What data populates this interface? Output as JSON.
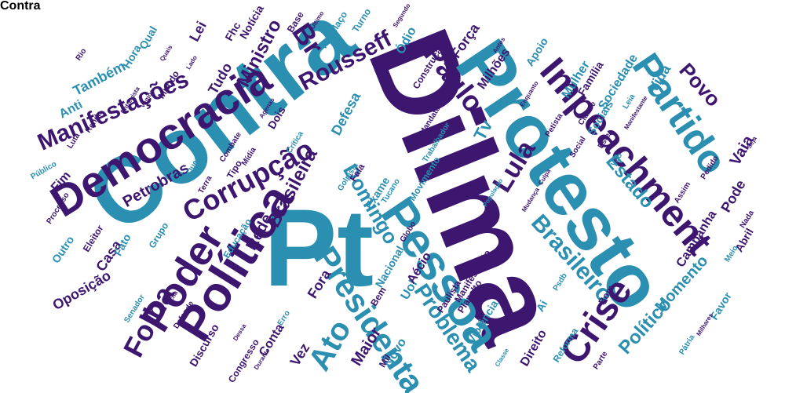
{
  "colors": {
    "purple": "#3d1670",
    "blue": "#2a8fb0",
    "background": "#ffffff"
  },
  "words": [
    {
      "text": "Dilma",
      "color": "purple"
    },
    {
      "text": "Pt",
      "color": "blue"
    },
    {
      "text": "Contra",
      "color": "blue"
    },
    {
      "text": "Protesto",
      "color": "blue"
    },
    {
      "text": "Política",
      "color": "purple"
    },
    {
      "text": "Pessoa",
      "color": "blue"
    },
    {
      "text": "Democracia",
      "color": "purple"
    },
    {
      "text": "Impeachment",
      "color": "purple"
    },
    {
      "text": "Partido",
      "color": "blue"
    },
    {
      "text": "Poder",
      "color": "purple"
    },
    {
      "text": "Crise",
      "color": "purple"
    },
    {
      "text": "Presidenta",
      "color": "blue"
    },
    {
      "text": "Corrupção",
      "color": "purple"
    },
    {
      "text": "Manifestações",
      "color": "purple"
    },
    {
      "text": "Folha",
      "color": "purple"
    },
    {
      "text": "Ato",
      "color": "blue"
    },
    {
      "text": "Rousseff",
      "color": "purple"
    },
    {
      "text": "Paulo",
      "color": "purple"
    },
    {
      "text": "Br",
      "color": "purple"
    },
    {
      "text": "Brasileiro",
      "color": "blue"
    },
    {
      "text": "Lula",
      "color": "purple"
    },
    {
      "text": "Problema",
      "color": "blue"
    },
    {
      "text": "Político",
      "color": "blue"
    },
    {
      "text": "Domingo",
      "color": "blue"
    },
    {
      "text": "Ministro",
      "color": "purple"
    },
    {
      "text": "Brasileira",
      "color": "purple"
    },
    {
      "text": "Estado",
      "color": "blue"
    },
    {
      "text": "Povo",
      "color": "purple"
    },
    {
      "text": "Petrobras",
      "color": "purple"
    },
    {
      "text": "Rede",
      "color": "purple"
    },
    {
      "text": "Tv",
      "color": "blue"
    },
    {
      "text": "Momento",
      "color": "blue"
    },
    {
      "text": "Maior",
      "color": "purple"
    },
    {
      "text": "Pode",
      "color": "purple"
    },
    {
      "text": "Vaia",
      "color": "purple"
    },
    {
      "text": "Vida",
      "color": "blue"
    },
    {
      "text": "Também",
      "color": "blue"
    },
    {
      "text": "Anti",
      "color": "blue"
    },
    {
      "text": "Tudo",
      "color": "purple"
    },
    {
      "text": "Lei",
      "color": "purple"
    },
    {
      "text": "Força",
      "color": "purple"
    },
    {
      "text": "Milhões",
      "color": "purple"
    },
    {
      "text": "Defesa",
      "color": "blue"
    },
    {
      "text": "Uol",
      "color": "blue"
    },
    {
      "text": "Direito",
      "color": "purple"
    },
    {
      "text": "Oposição",
      "color": "purple"
    },
    {
      "text": "Fora",
      "color": "purple"
    },
    {
      "text": "Vez",
      "color": "purple"
    },
    {
      "text": "Conta",
      "color": "purple"
    },
    {
      "text": "Novo",
      "color": "blue"
    },
    {
      "text": "Aécio",
      "color": "purple"
    },
    {
      "text": "Nacional",
      "color": "blue"
    },
    {
      "text": "Violência",
      "color": "blue"
    },
    {
      "text": "Mulher",
      "color": "blue"
    },
    {
      "text": "Sociais",
      "color": "blue"
    },
    {
      "text": "Ódio",
      "color": "blue"
    },
    {
      "text": "Apoio",
      "color": "blue"
    },
    {
      "text": "Exame",
      "color": "blue"
    },
    {
      "text": "Casa",
      "color": "purple"
    },
    {
      "text": "Fim",
      "color": "purple"
    },
    {
      "text": "Outro",
      "color": "blue"
    },
    {
      "text": "Favor",
      "color": "blue"
    },
    {
      "text": "Campanha",
      "color": "purple"
    },
    {
      "text": "Abril",
      "color": "purple"
    },
    {
      "text": "Sociedade",
      "color": "blue"
    },
    {
      "text": "Família",
      "color": "purple"
    },
    {
      "text": "Manifestação",
      "color": "purple"
    },
    {
      "text": "Fhc",
      "color": "purple"
    },
    {
      "text": "Hora",
      "color": "blue"
    },
    {
      "text": "Qual",
      "color": "blue"
    },
    {
      "text": "Mundo",
      "color": "purple"
    },
    {
      "text": "Notícia",
      "color": "purple"
    },
    {
      "text": "Base",
      "color": "purple"
    },
    {
      "text": "Turno",
      "color": "blue"
    },
    {
      "text": "Panelaço",
      "color": "blue"
    },
    {
      "text": "Dois",
      "color": "purple"
    },
    {
      "text": "Fala",
      "color": "purple"
    },
    {
      "text": "Bom",
      "color": "purple"
    },
    {
      "text": "Bem",
      "color": "purple"
    },
    {
      "text": "Mil",
      "color": "purple"
    },
    {
      "text": "Discurso",
      "color": "purple"
    },
    {
      "text": "Congresso",
      "color": "purple"
    },
    {
      "text": "Fato",
      "color": "blue"
    },
    {
      "text": "Grupo",
      "color": "blue"
    },
    {
      "text": "Eleitor",
      "color": "purple"
    },
    {
      "text": "Senador",
      "color": "blue"
    },
    {
      "text": "Movimento",
      "color": "blue"
    },
    {
      "text": "Trabalhador",
      "color": "blue"
    },
    {
      "text": "Mandato",
      "color": "purple"
    },
    {
      "text": "Paulista",
      "color": "purple"
    },
    {
      "text": "Planalto",
      "color": "purple"
    },
    {
      "text": "Globo",
      "color": "purple"
    },
    {
      "text": "Tucano",
      "color": "blue"
    },
    {
      "text": "Reforma",
      "color": "blue"
    },
    {
      "text": "Parte",
      "color": "purple"
    },
    {
      "text": "Ai",
      "color": "blue"
    },
    {
      "text": "Psdb",
      "color": "blue"
    },
    {
      "text": "Petista",
      "color": "purple"
    },
    {
      "text": "Social",
      "color": "purple"
    },
    {
      "text": "Vão",
      "color": "blue"
    },
    {
      "text": "Este",
      "color": "purple"
    },
    {
      "text": "Leia",
      "color": "blue"
    },
    {
      "text": "Manifestante",
      "color": "purple"
    },
    {
      "text": "Assim",
      "color": "purple"
    },
    {
      "text": "Pedido",
      "color": "purple"
    },
    {
      "text": "Nada",
      "color": "purple"
    },
    {
      "text": "Meio",
      "color": "blue"
    },
    {
      "text": "Quer",
      "color": "blue"
    },
    {
      "text": "Terra",
      "color": "purple"
    },
    {
      "text": "Combate",
      "color": "purple"
    },
    {
      "text": "Mídia",
      "color": "purple"
    },
    {
      "text": "Agenas",
      "color": "purple"
    },
    {
      "text": "Golpista",
      "color": "blue"
    },
    {
      "text": "População",
      "color": "blue"
    },
    {
      "text": "Mudança",
      "color": "purple"
    },
    {
      "text": "Culpa",
      "color": "purple"
    },
    {
      "text": "Enquanto",
      "color": "purple"
    },
    {
      "text": "Cidade",
      "color": "purple"
    },
    {
      "text": "Luta",
      "color": "purple"
    },
    {
      "text": "Renda",
      "color": "purple"
    },
    {
      "text": "Entrevista",
      "color": "purple"
    },
    {
      "text": "Vamos",
      "color": "purple"
    },
    {
      "text": "Processo",
      "color": "purple"
    },
    {
      "text": "Defende",
      "color": "purple"
    },
    {
      "text": "Acha",
      "color": "purple"
    },
    {
      "text": "Erro",
      "color": "blue"
    },
    {
      "text": "Durante",
      "color": "purple"
    },
    {
      "text": "Dessa",
      "color": "purple"
    },
    {
      "text": "Educação",
      "color": "blue"
    },
    {
      "text": "Rio",
      "color": "purple"
    },
    {
      "text": "Pátria",
      "color": "blue"
    },
    {
      "text": "Milhares",
      "color": "purple"
    },
    {
      "text": "Tipo",
      "color": "purple"
    },
    {
      "text": "Crítica",
      "color": "blue"
    },
    {
      "text": "Quais",
      "color": "purple"
    },
    {
      "text": "Lado",
      "color": "purple"
    },
    {
      "text": "Segundo",
      "color": "purple"
    },
    {
      "text": "Último",
      "color": "purple"
    },
    {
      "text": "Antes",
      "color": "purple"
    },
    {
      "text": "Classe",
      "color": "blue"
    },
    {
      "text": "Público",
      "color": "blue"
    },
    {
      "text": "Seja",
      "color": "purple"
    },
    {
      "text": "Construção",
      "color": "purple"
    },
    {
      "text": "Contra",
      "color": "blue"
    }
  ]
}
